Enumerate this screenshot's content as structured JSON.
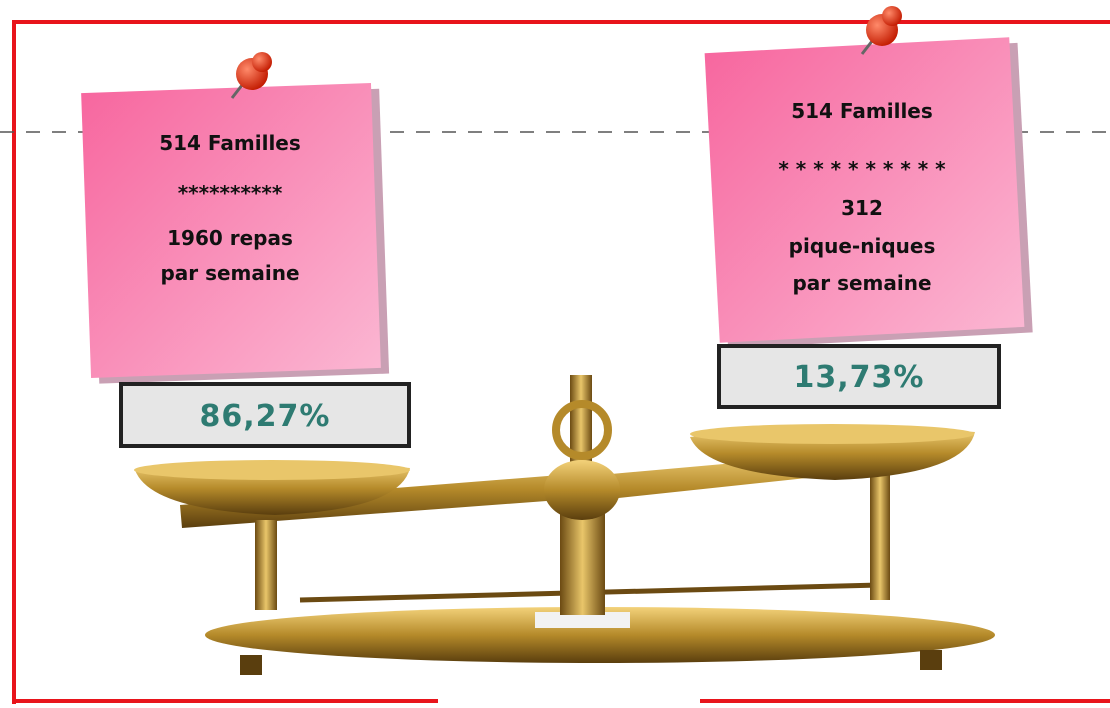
{
  "notes": [
    {
      "lines": [
        "514 Familles",
        "**********",
        "1960  repas",
        "par semaine"
      ],
      "percent": "86,27%"
    },
    {
      "lines": [
        "514 Familles",
        "* * * * * * * * * *",
        "312",
        "pique-niques",
        "par semaine"
      ],
      "percent": "13,73%"
    }
  ]
}
